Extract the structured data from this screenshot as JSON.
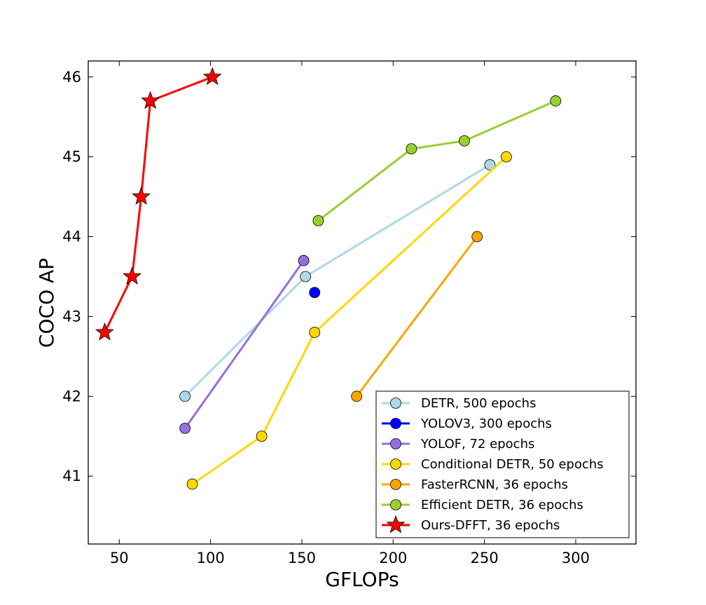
{
  "chart_data": {
    "type": "line",
    "title": "",
    "xlabel": "GFLOPs",
    "ylabel": "COCO AP",
    "xlim": [
      33,
      333
    ],
    "ylim": [
      40.15,
      46.2
    ],
    "xticks": [
      50,
      100,
      150,
      200,
      250,
      300
    ],
    "yticks": [
      41,
      42,
      43,
      44,
      45,
      46
    ],
    "legend_position": "lower-right",
    "series": [
      {
        "name": "DETR, 500 epochs",
        "color": "#add8e6",
        "marker": "circle",
        "x": [
          86,
          152,
          253
        ],
        "y": [
          42.0,
          43.5,
          44.9
        ]
      },
      {
        "name": "YOLOV3, 300 epochs",
        "color": "#0000ff",
        "marker": "circle",
        "x": [
          157
        ],
        "y": [
          43.3
        ]
      },
      {
        "name": "YOLOF, 72 epochs",
        "color": "#9370db",
        "marker": "circle",
        "x": [
          86,
          151
        ],
        "y": [
          41.6,
          43.7
        ]
      },
      {
        "name": "Conditional DETR, 50 epochs",
        "color": "#ffd700",
        "marker": "circle",
        "x": [
          90,
          128,
          157,
          262
        ],
        "y": [
          40.9,
          41.5,
          42.8,
          45.0
        ]
      },
      {
        "name": "FasterRCNN, 36 epochs",
        "color": "#ffa500",
        "marker": "circle",
        "x": [
          180,
          246
        ],
        "y": [
          42.0,
          44.0
        ]
      },
      {
        "name": "Efficient DETR, 36 epochs",
        "color": "#9acd32",
        "marker": "circle",
        "x": [
          159,
          210,
          239,
          289
        ],
        "y": [
          44.2,
          45.1,
          45.2,
          45.7
        ]
      },
      {
        "name": "Ours-DFFT, 36 epochs",
        "color": "#ff0000",
        "marker": "star",
        "x": [
          42,
          57,
          62,
          67,
          101
        ],
        "y": [
          42.8,
          43.5,
          44.5,
          45.7,
          46.0
        ]
      }
    ]
  }
}
